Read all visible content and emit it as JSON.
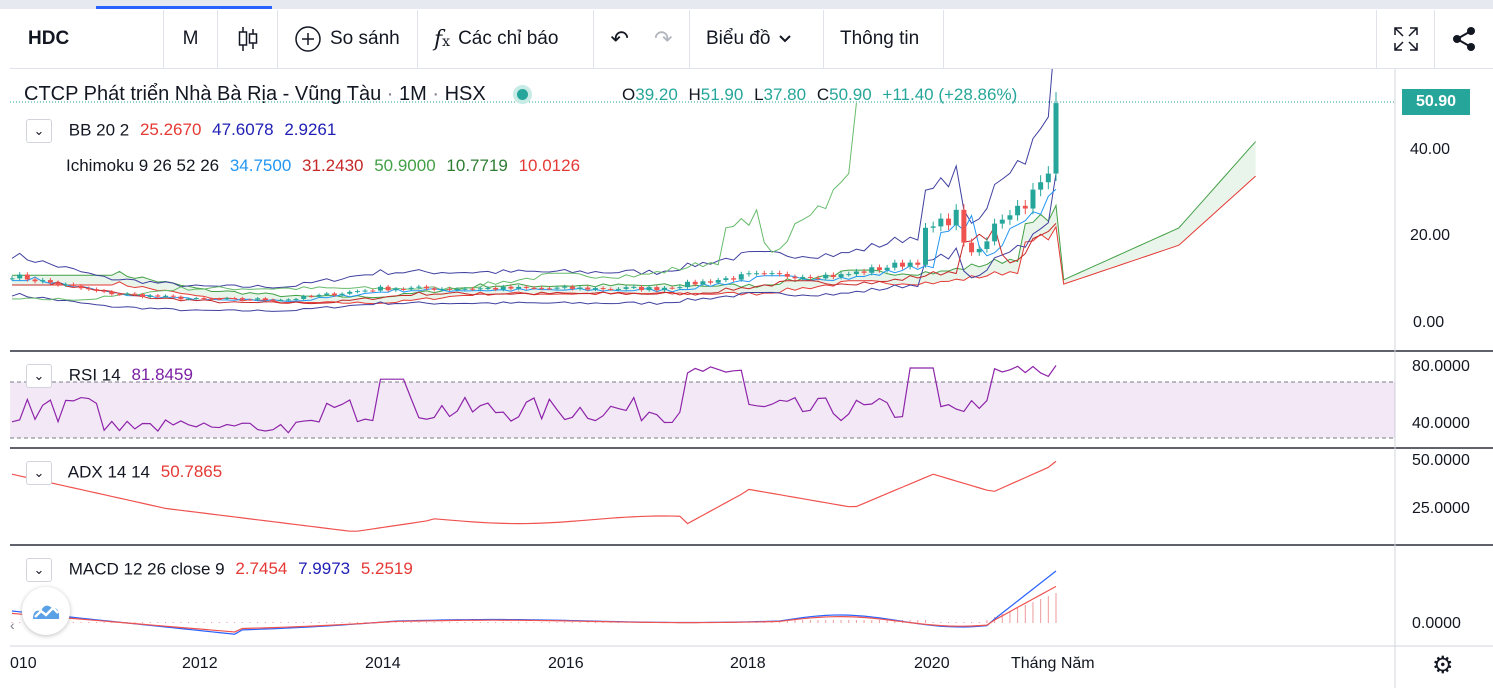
{
  "toolbar": {
    "symbol": "HDC",
    "interval": "M",
    "compare_label": "So sánh",
    "indicators_label": "Các chỉ báo",
    "chart_menu_label": "Biểu đồ",
    "info_label": "Thông tin"
  },
  "header": {
    "title": "CTCP Phát triển Nhà Bà Rịa - Vũng Tàu",
    "sep1": "·",
    "interval": "1M",
    "sep2": "·",
    "exchange": "HSX",
    "open_key": "O",
    "open": "39.20",
    "high_key": "H",
    "high": "51.90",
    "low_key": "L",
    "low": "37.80",
    "close_key": "C",
    "close": "50.90",
    "change": "+11.40 (+28.86%)",
    "last_price": "50.90"
  },
  "indicators": {
    "bb": {
      "label": "BB 20 2",
      "v1": "25.2670",
      "v2": "47.6078",
      "v3": "2.9261"
    },
    "ichimoku": {
      "label": "Ichimoku 9 26 52 26",
      "v1": "34.7500",
      "v2": "31.2430",
      "v3": "50.9000",
      "v4": "10.7719",
      "v5": "10.0126"
    },
    "rsi": {
      "label": "RSI 14",
      "value": "81.8459"
    },
    "adx": {
      "label": "ADX 14 14",
      "value": "50.7865"
    },
    "macd": {
      "label": "MACD 12 26 close 9",
      "v1": "2.7454",
      "v2": "7.9973",
      "v3": "5.2519"
    }
  },
  "price_axis": {
    "ticks": [
      "40.00",
      "20.00",
      "0.00"
    ]
  },
  "rsi_axis": {
    "ticks": [
      "80.0000",
      "40.0000"
    ]
  },
  "adx_axis": {
    "ticks": [
      "50.0000",
      "25.0000"
    ]
  },
  "macd_axis": {
    "ticks": [
      "0.0000"
    ]
  },
  "time_axis": {
    "ticks": [
      "010",
      "2012",
      "2014",
      "2016",
      "2018",
      "2020"
    ],
    "unit_label": "Tháng Năm"
  },
  "colors": {
    "up": "#26a69a",
    "down": "#ef5350",
    "bb": "#3f3f9f",
    "rsi": "#8e24aa",
    "adx": "#ef5350",
    "macd": "#2962ff",
    "signal": "#ef5350"
  },
  "icons": [
    "candlestick-icon",
    "plus-circle-icon",
    "function-icon",
    "undo-icon",
    "redo-icon",
    "chevron-down-icon",
    "fullscreen-icon",
    "share-icon",
    "settings-icon",
    "logo-icon"
  ],
  "chart_data": {
    "type": "candlestick",
    "instrument": "HDC",
    "interval": "1M",
    "x_range": [
      "2010",
      "2021"
    ],
    "price_ylim": [
      0,
      52
    ],
    "approx_monthly_close_by_year": {
      "2010": 11,
      "2011": 7,
      "2012": 5.5,
      "2013": 5.5,
      "2014": 8,
      "2015": 8,
      "2016": 8,
      "2017": 8,
      "2018": 11,
      "2019": 11,
      "2020": 15,
      "2021": 50.9
    },
    "series": [
      {
        "name": "RSI 14",
        "last": 81.8459
      },
      {
        "name": "ADX 14 14",
        "last": 50.7865
      },
      {
        "name": "MACD 12 26 close 9",
        "last": [
          2.7454,
          7.9973,
          5.2519
        ]
      }
    ]
  }
}
